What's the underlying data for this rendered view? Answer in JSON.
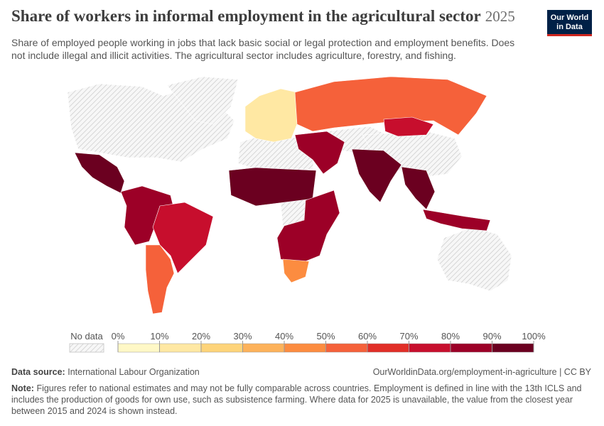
{
  "header": {
    "title": "Share of workers in informal employment in the agricultural sector",
    "year": "2025",
    "subtitle": "Share of employed people working in jobs that lack basic social or legal protection and employment benefits. Does not include illegal and illicit activities. The agricultural sector includes agriculture, forestry, and fishing.",
    "logo": [
      "Our World",
      "in Data"
    ]
  },
  "legend": {
    "no_data": "No data",
    "bins": [
      {
        "value": 0,
        "label": "0%"
      },
      {
        "value": 10,
        "label": "10%"
      },
      {
        "value": 20,
        "label": "20%"
      },
      {
        "value": 30,
        "label": "30%"
      },
      {
        "value": 40,
        "label": "40%"
      },
      {
        "value": 50,
        "label": "50%"
      },
      {
        "value": 60,
        "label": "60%"
      },
      {
        "value": 70,
        "label": "70%"
      },
      {
        "value": 80,
        "label": "80%"
      },
      {
        "value": 90,
        "label": "90%"
      },
      {
        "value": 100,
        "label": "100%"
      }
    ],
    "colors": [
      "#fff8c6",
      "#ffe8a3",
      "#fed47a",
      "#fdb25a",
      "#fc8c40",
      "#f5613a",
      "#e12e27",
      "#c70e2d",
      "#9c0027",
      "#6b0020"
    ]
  },
  "regions": [
    {
      "value": 92
    },
    {
      "value": 88
    },
    {
      "value": 72
    },
    {
      "value": 58
    },
    {
      "value": 15
    },
    {
      "value": 55
    },
    {
      "value": 72
    },
    {
      "value": 93
    },
    {
      "value": 88
    },
    {
      "value": 45
    },
    {
      "value": 86
    },
    {
      "value": 94
    },
    {
      "value": 91
    },
    {
      "value": 88
    }
  ],
  "footer": {
    "source_label": "Data source:",
    "source": "International Labour Organization",
    "url": "OurWorldinData.org/employment-in-agriculture | CC BY",
    "note_label": "Note:",
    "note": "Figures refer to national estimates and may not be fully comparable across countries. Employment is defined in line with the 13th ICLS and includes the production of goods for own use, such as subsistence farming. Where data for 2025 is unavailable, the value from the closest year between 2015 and 2024 is shown instead."
  }
}
